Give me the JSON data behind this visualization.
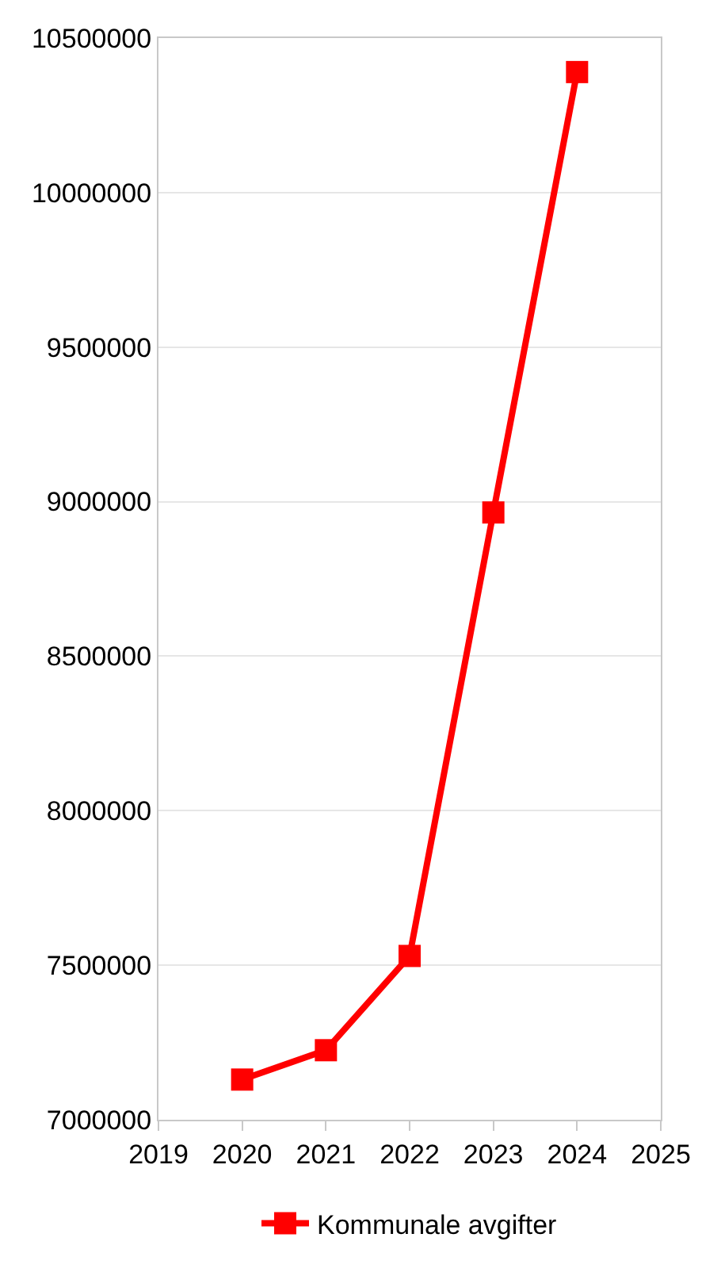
{
  "chart_data": {
    "type": "line",
    "x": [
      2020,
      2021,
      2022,
      2023,
      2024
    ],
    "series": [
      {
        "name": "Kommunale avgifter",
        "color": "#ff0000",
        "values": [
          7130000,
          7225000,
          7530000,
          8965000,
          10390000
        ]
      }
    ],
    "xlim": [
      2019,
      2025
    ],
    "xticks": [
      2019,
      2020,
      2021,
      2022,
      2023,
      2024,
      2025
    ],
    "ylim": [
      7000000,
      10500000
    ],
    "yticks": [
      7000000,
      7500000,
      8000000,
      8500000,
      9000000,
      9500000,
      10000000,
      10500000
    ],
    "grid": "y",
    "legend": "bottom",
    "marker": "square",
    "line_style": "solid"
  }
}
